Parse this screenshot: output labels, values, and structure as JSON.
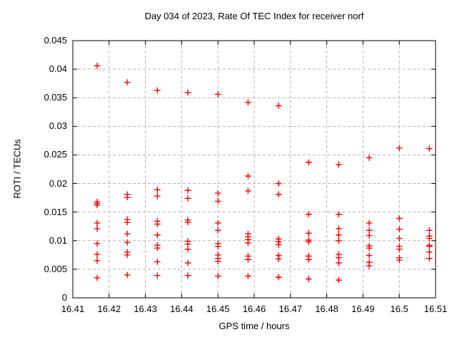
{
  "chart_data": {
    "type": "scatter",
    "title": "Day 034 of 2023, Rate Of TEC Index for receiver norf",
    "xlabel": "GPS time / hours",
    "ylabel": "ROTI / TECUs",
    "xlim": [
      16.41,
      16.51
    ],
    "ylim": [
      0,
      0.045
    ],
    "xtick_values": [
      16.41,
      16.42,
      16.43,
      16.44,
      16.45,
      16.46,
      16.47,
      16.48,
      16.49,
      16.5,
      16.51
    ],
    "xtick_labels": [
      "16.41",
      "16.42",
      "16.43",
      "16.44",
      "16.45",
      "16.46",
      "16.47",
      "16.48",
      "16.49",
      "16.5",
      "16.51"
    ],
    "ytick_values": [
      0,
      0.005,
      0.01,
      0.015,
      0.02,
      0.025,
      0.03,
      0.035,
      0.04,
      0.045
    ],
    "ytick_labels": [
      "0",
      "0.005",
      "0.01",
      "0.015",
      "0.02",
      "0.025",
      "0.03",
      "0.035",
      "0.04",
      "0.045"
    ],
    "grid": "dashed",
    "legend": "none",
    "marker": "plus",
    "marker_color": "#ff0000",
    "grid_color": "#b3b3b3",
    "border_color": "#000000",
    "series": [
      {
        "name": "ROTI",
        "clusters": [
          {
            "t": 16.4167,
            "values": [
              0.0406,
              0.0168,
              0.0165,
              0.0162,
              0.0131,
              0.0121,
              0.0095,
              0.0076,
              0.0065,
              0.0035
            ]
          },
          {
            "t": 16.425,
            "values": [
              0.0377,
              0.0181,
              0.0176,
              0.0137,
              0.0132,
              0.0112,
              0.0097,
              0.008,
              0.0075,
              0.004
            ]
          },
          {
            "t": 16.4333,
            "values": [
              0.0363,
              0.0189,
              0.0178,
              0.0134,
              0.0129,
              0.011,
              0.0092,
              0.0087,
              0.0063,
              0.0039
            ]
          },
          {
            "t": 16.4417,
            "values": [
              0.0359,
              0.0188,
              0.0174,
              0.0136,
              0.0132,
              0.0099,
              0.0094,
              0.0085,
              0.0061,
              0.0039
            ]
          },
          {
            "t": 16.45,
            "values": [
              0.0356,
              0.0183,
              0.0169,
              0.0131,
              0.0118,
              0.0095,
              0.009,
              0.0075,
              0.0069,
              0.0064,
              0.0038
            ]
          },
          {
            "t": 16.4583,
            "values": [
              0.0342,
              0.0213,
              0.0187,
              0.0112,
              0.0107,
              0.0102,
              0.0096,
              0.0073,
              0.0067,
              0.0038
            ]
          },
          {
            "t": 16.4667,
            "values": [
              0.0336,
              0.02,
              0.0181,
              0.0103,
              0.0098,
              0.0093,
              0.0074,
              0.0068,
              0.0036
            ]
          },
          {
            "t": 16.475,
            "values": [
              0.0237,
              0.0146,
              0.0113,
              0.0101,
              0.0098,
              0.0073,
              0.0067,
              0.0033
            ]
          },
          {
            "t": 16.4833,
            "values": [
              0.0233,
              0.0146,
              0.0121,
              0.011,
              0.01,
              0.0076,
              0.007,
              0.0061,
              0.0031
            ]
          },
          {
            "t": 16.4917,
            "values": [
              0.0245,
              0.0131,
              0.0118,
              0.0109,
              0.0091,
              0.0087,
              0.0074,
              0.0062,
              0.0056
            ]
          },
          {
            "t": 16.5,
            "values": [
              0.0262,
              0.0139,
              0.012,
              0.0104,
              0.009,
              0.0085,
              0.007,
              0.0066
            ]
          },
          {
            "t": 16.5083,
            "values": [
              0.0261,
              0.0118,
              0.0108,
              0.0104,
              0.0092,
              0.009,
              0.008,
              0.0069
            ]
          }
        ]
      }
    ]
  }
}
